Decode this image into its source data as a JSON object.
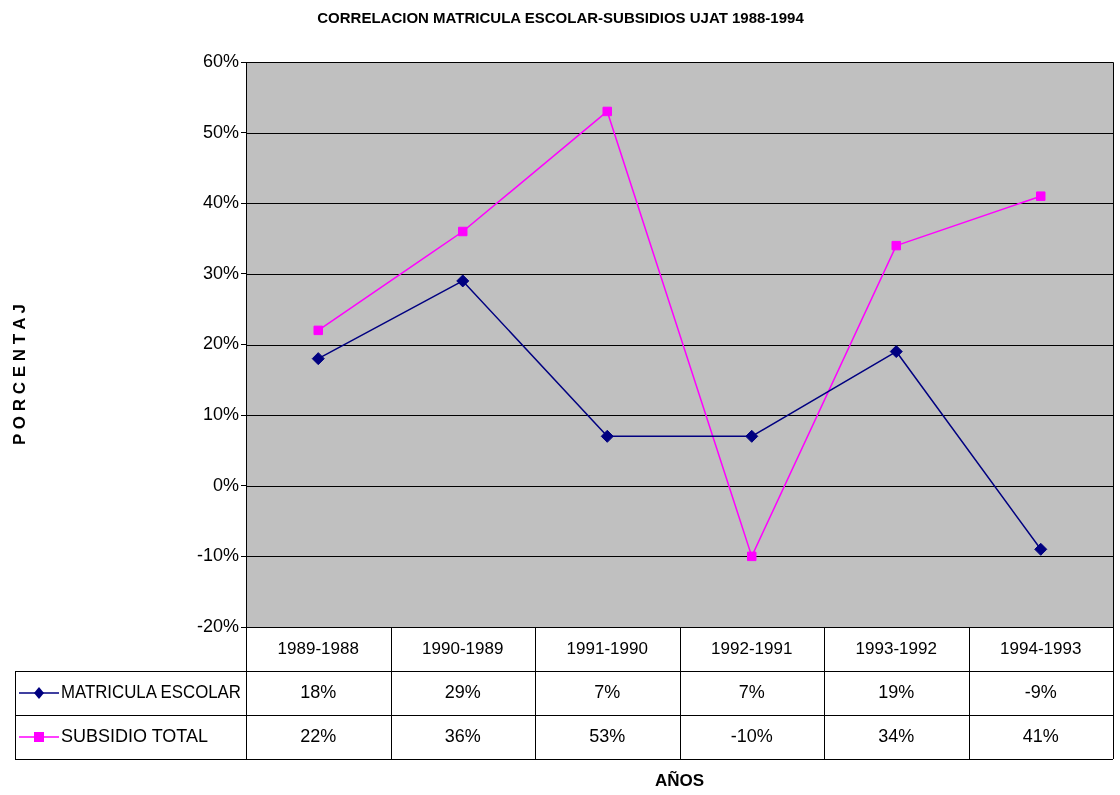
{
  "chart_data": {
    "type": "line",
    "title": "CORRELACION MATRICULA ESCOLAR-SUBSIDIOS UJAT 1988-1994",
    "annotations": [
      "AÑOS",
      "P O R C E N T A J"
    ],
    "categories": [
      "1989-1988",
      "1990-1989",
      "1991-1990",
      "1992-1991",
      "1993-1992",
      "1994-1993"
    ],
    "series": [
      {
        "name": "MATRICULA ESCOLAR",
        "color": "#000080",
        "marker": "diamond",
        "values": [
          18,
          29,
          7,
          7,
          19,
          -9
        ],
        "value_labels": [
          "18%",
          "29%",
          "7%",
          "7%",
          "19%",
          "-9%"
        ]
      },
      {
        "name": "SUBSIDIO TOTAL",
        "color": "#ff00ff",
        "marker": "square",
        "values": [
          22,
          36,
          53,
          -10,
          34,
          41
        ],
        "value_labels": [
          "22%",
          "36%",
          "53%",
          "-10%",
          "34%",
          "41%"
        ]
      }
    ],
    "ylim": [
      -20,
      60
    ],
    "yticks": [
      {
        "value": -20,
        "label": "-20%"
      },
      {
        "value": -10,
        "label": "-10%"
      },
      {
        "value": 0,
        "label": "0%"
      },
      {
        "value": 10,
        "label": "10%"
      },
      {
        "value": 20,
        "label": "20%"
      },
      {
        "value": 30,
        "label": "30%"
      },
      {
        "value": 40,
        "label": "40%"
      },
      {
        "value": 50,
        "label": "50%"
      },
      {
        "value": 60,
        "label": "60%"
      }
    ],
    "grid": "y",
    "legend": "bottom left",
    "line_style": "solid"
  }
}
